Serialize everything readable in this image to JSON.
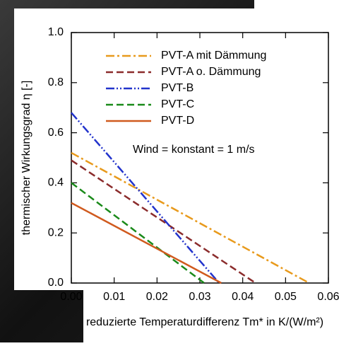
{
  "chart_data": {
    "type": "line",
    "ylabel": "thermischer  Wirkungsgrad η [-]",
    "xlabel": "reduzierte Temperaturdifferenz Tm* in K/(W/m²)",
    "annotation": "Wind = konstant = 1 m/s",
    "xlim": [
      0,
      0.06
    ],
    "ylim": [
      0,
      1.0
    ],
    "xticks": [
      {
        "value": 0,
        "label": "0.00"
      },
      {
        "value": 0.01,
        "label": "0.01"
      },
      {
        "value": 0.02,
        "label": "0.02"
      },
      {
        "value": 0.03,
        "label": "0.03"
      },
      {
        "value": 0.04,
        "label": "0.04"
      },
      {
        "value": 0.05,
        "label": "0.05"
      },
      {
        "value": 0.06,
        "label": "0.06"
      }
    ],
    "yticks": [
      {
        "value": 0,
        "label": "0.0"
      },
      0.2,
      0.4,
      0.6,
      0.8,
      {
        "value": 1,
        "label": "1.0"
      }
    ],
    "grid": false,
    "series": [
      {
        "name": "PVT-A mit Dämmung",
        "color": "#e89a1c",
        "linestyle": "dashdot",
        "x": [
          0,
          0.0555
        ],
        "values": [
          0.52,
          0
        ]
      },
      {
        "name": "PVT-A o. Dämmung",
        "color": "#8b2c2c",
        "linestyle": "dashed",
        "x": [
          0,
          0.043
        ],
        "values": [
          0.49,
          0
        ]
      },
      {
        "name": "PVT-B",
        "color": "#2233cc",
        "linestyle": "dashdotdot",
        "x": [
          0,
          0.0345
        ],
        "values": [
          0.68,
          0
        ]
      },
      {
        "name": "PVT-C",
        "color": "#1a8a1a",
        "linestyle": "dashed",
        "x": [
          0,
          0.031
        ],
        "values": [
          0.4,
          0
        ]
      },
      {
        "name": "PVT-D",
        "color": "#d05a1e",
        "linestyle": "solid",
        "x": [
          0,
          0.035
        ],
        "values": [
          0.32,
          0
        ]
      }
    ]
  }
}
